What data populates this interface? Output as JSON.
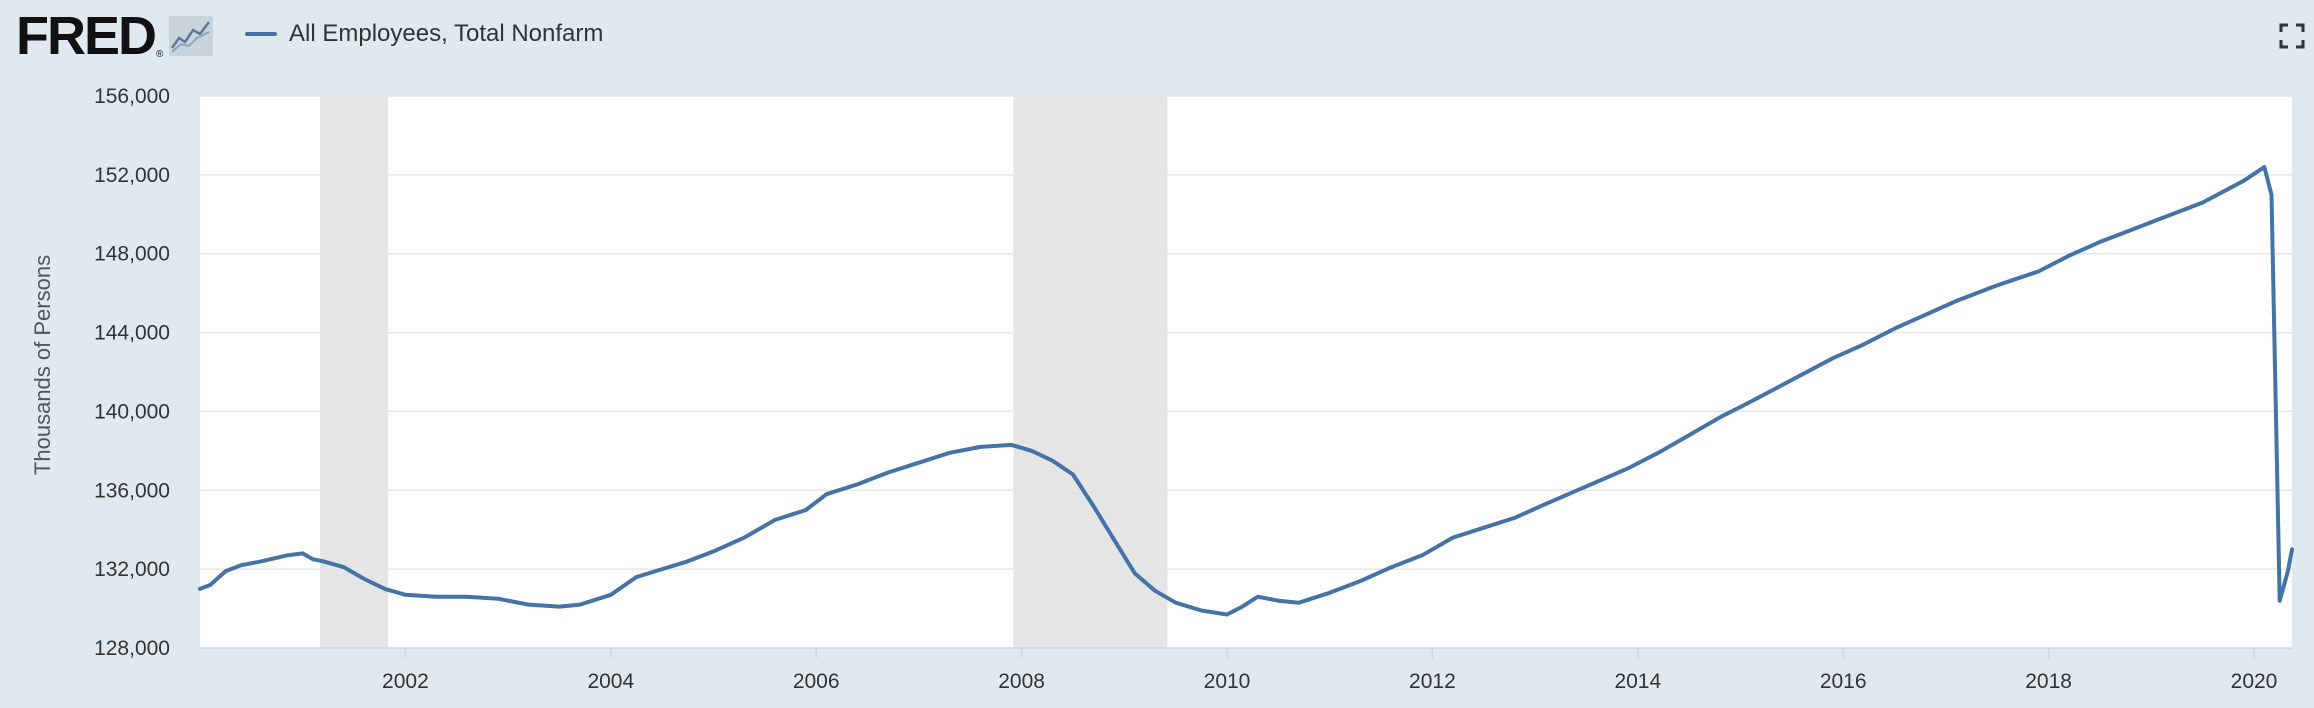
{
  "header": {
    "logo_text": "FRED",
    "logo_reg": "®",
    "legend_label": "All Employees, Total Nonfarm"
  },
  "icons": {
    "logo_graph": "line-graph-icon",
    "fullscreen": "fullscreen-icon"
  },
  "colors": {
    "background": "#e1e9f0",
    "plot": "#ffffff",
    "line": "#4572a7",
    "recession": "#e5e5e5",
    "grid": "#e6e6e6"
  },
  "chart_data": {
    "type": "line",
    "title": "",
    "xlabel": "",
    "ylabel": "Thousands of Persons",
    "xlim": [
      2000.0,
      2020.37
    ],
    "ylim": [
      128000,
      156000
    ],
    "x_ticks": [
      2002,
      2004,
      2006,
      2008,
      2010,
      2012,
      2014,
      2016,
      2018,
      2020
    ],
    "x_tick_labels": [
      "2002",
      "2004",
      "2006",
      "2008",
      "2010",
      "2012",
      "2014",
      "2016",
      "2018",
      "2020"
    ],
    "y_ticks": [
      128000,
      132000,
      136000,
      140000,
      144000,
      148000,
      152000,
      156000
    ],
    "y_tick_labels": [
      "128,000",
      "132,000",
      "136,000",
      "140,000",
      "144,000",
      "148,000",
      "152,000",
      "156,000"
    ],
    "grid": "horizontal",
    "recessions": [
      [
        2001.17,
        2001.83
      ],
      [
        2007.92,
        2009.42
      ]
    ],
    "series": [
      {
        "name": "All Employees, Total Nonfarm",
        "x": [
          2000.0,
          2000.1,
          2000.25,
          2000.4,
          2000.6,
          2000.85,
          2001.0,
          2001.1,
          2001.2,
          2001.4,
          2001.6,
          2001.8,
          2002.0,
          2002.3,
          2002.6,
          2002.9,
          2003.2,
          2003.5,
          2003.7,
          2004.0,
          2004.25,
          2004.5,
          2004.75,
          2005.0,
          2005.3,
          2005.6,
          2005.9,
          2006.1,
          2006.4,
          2006.7,
          2007.0,
          2007.3,
          2007.6,
          2007.9,
          2008.1,
          2008.3,
          2008.5,
          2008.7,
          2008.9,
          2009.1,
          2009.3,
          2009.5,
          2009.75,
          2010.0,
          2010.15,
          2010.3,
          2010.5,
          2010.7,
          2011.0,
          2011.3,
          2011.6,
          2011.9,
          2012.2,
          2012.5,
          2012.8,
          2013.1,
          2013.5,
          2013.9,
          2014.2,
          2014.5,
          2014.8,
          2015.1,
          2015.5,
          2015.9,
          2016.2,
          2016.5,
          2016.8,
          2017.1,
          2017.5,
          2017.9,
          2018.2,
          2018.5,
          2018.8,
          2019.1,
          2019.5,
          2019.9,
          2020.1,
          2020.17,
          2020.25,
          2020.33,
          2020.37
        ],
        "y": [
          131000,
          131200,
          131900,
          132200,
          132400,
          132700,
          132800,
          132500,
          132400,
          132100,
          131500,
          131000,
          130700,
          130600,
          130600,
          130500,
          130200,
          130100,
          130200,
          130700,
          131600,
          132000,
          132400,
          132900,
          133600,
          134500,
          135000,
          135800,
          136300,
          136900,
          137400,
          137900,
          138200,
          138300,
          138000,
          137500,
          136800,
          135200,
          133500,
          131800,
          130900,
          130300,
          129900,
          129700,
          130100,
          130600,
          130400,
          130300,
          130800,
          131400,
          132100,
          132700,
          133600,
          134100,
          134600,
          135300,
          136200,
          137100,
          137900,
          138800,
          139700,
          140500,
          141600,
          142700,
          143400,
          144200,
          144900,
          145600,
          146400,
          147100,
          147900,
          148600,
          149200,
          149800,
          150600,
          151700,
          152400,
          151000,
          130400,
          131900,
          133000
        ]
      }
    ]
  }
}
